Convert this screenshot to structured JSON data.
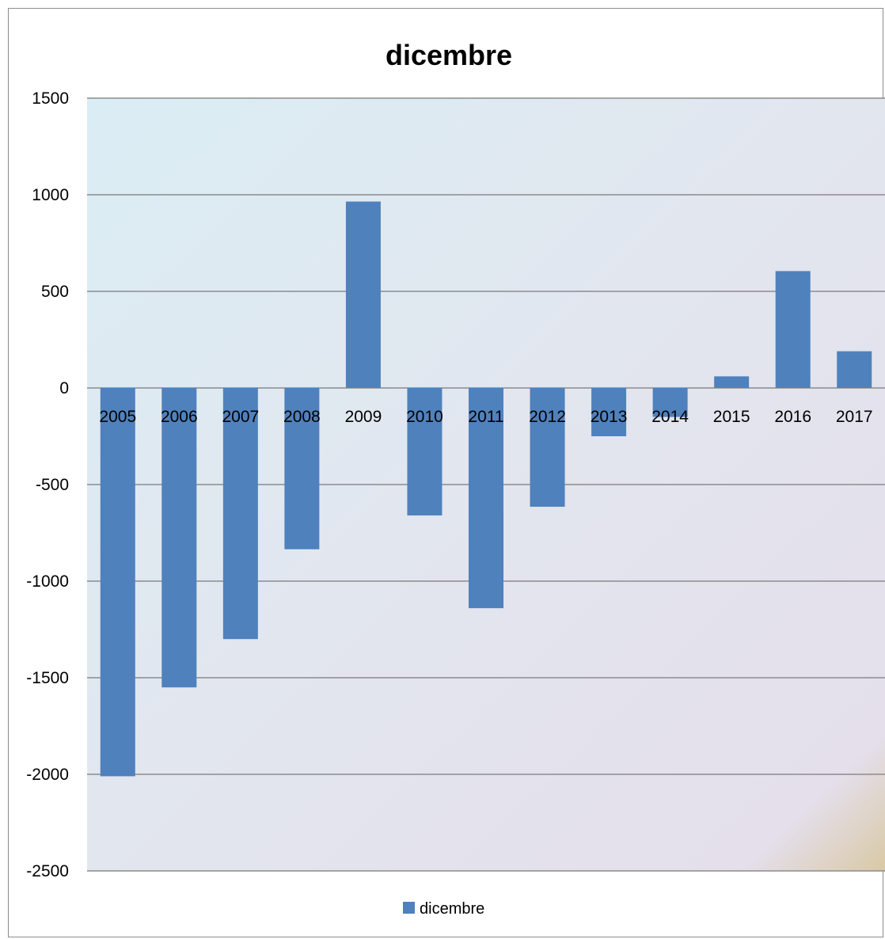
{
  "chart_data": {
    "type": "bar",
    "title": "dicembre",
    "xlabel": "",
    "ylabel": "",
    "categories": [
      "2005",
      "2006",
      "2007",
      "2008",
      "2009",
      "2010",
      "2011",
      "2012",
      "2013",
      "2014",
      "2015",
      "2016",
      "2017"
    ],
    "series": [
      {
        "name": "dicembre",
        "values": [
          -2010,
          -1550,
          -1300,
          -835,
          965,
          -660,
          -1140,
          -615,
          -250,
          -150,
          60,
          605,
          190
        ]
      }
    ],
    "ylim": [
      -2500,
      1500
    ],
    "yticks": [
      1500,
      1000,
      500,
      0,
      -500,
      -1000,
      -1500,
      -2000,
      -2500
    ],
    "ytick_labels": [
      "1500",
      "1000",
      "500",
      "0",
      "-500",
      "-1000",
      "-1500",
      "-2000",
      "-2500"
    ],
    "grid": true,
    "legend_position": "bottom",
    "colors": {
      "bar": "#4f81bd",
      "gridline": "#8c8c8c",
      "plot_bg_start": "#dbedf4",
      "plot_bg_mid": "#e4e2ee",
      "plot_bg_corner": "#d9c9a5"
    }
  }
}
